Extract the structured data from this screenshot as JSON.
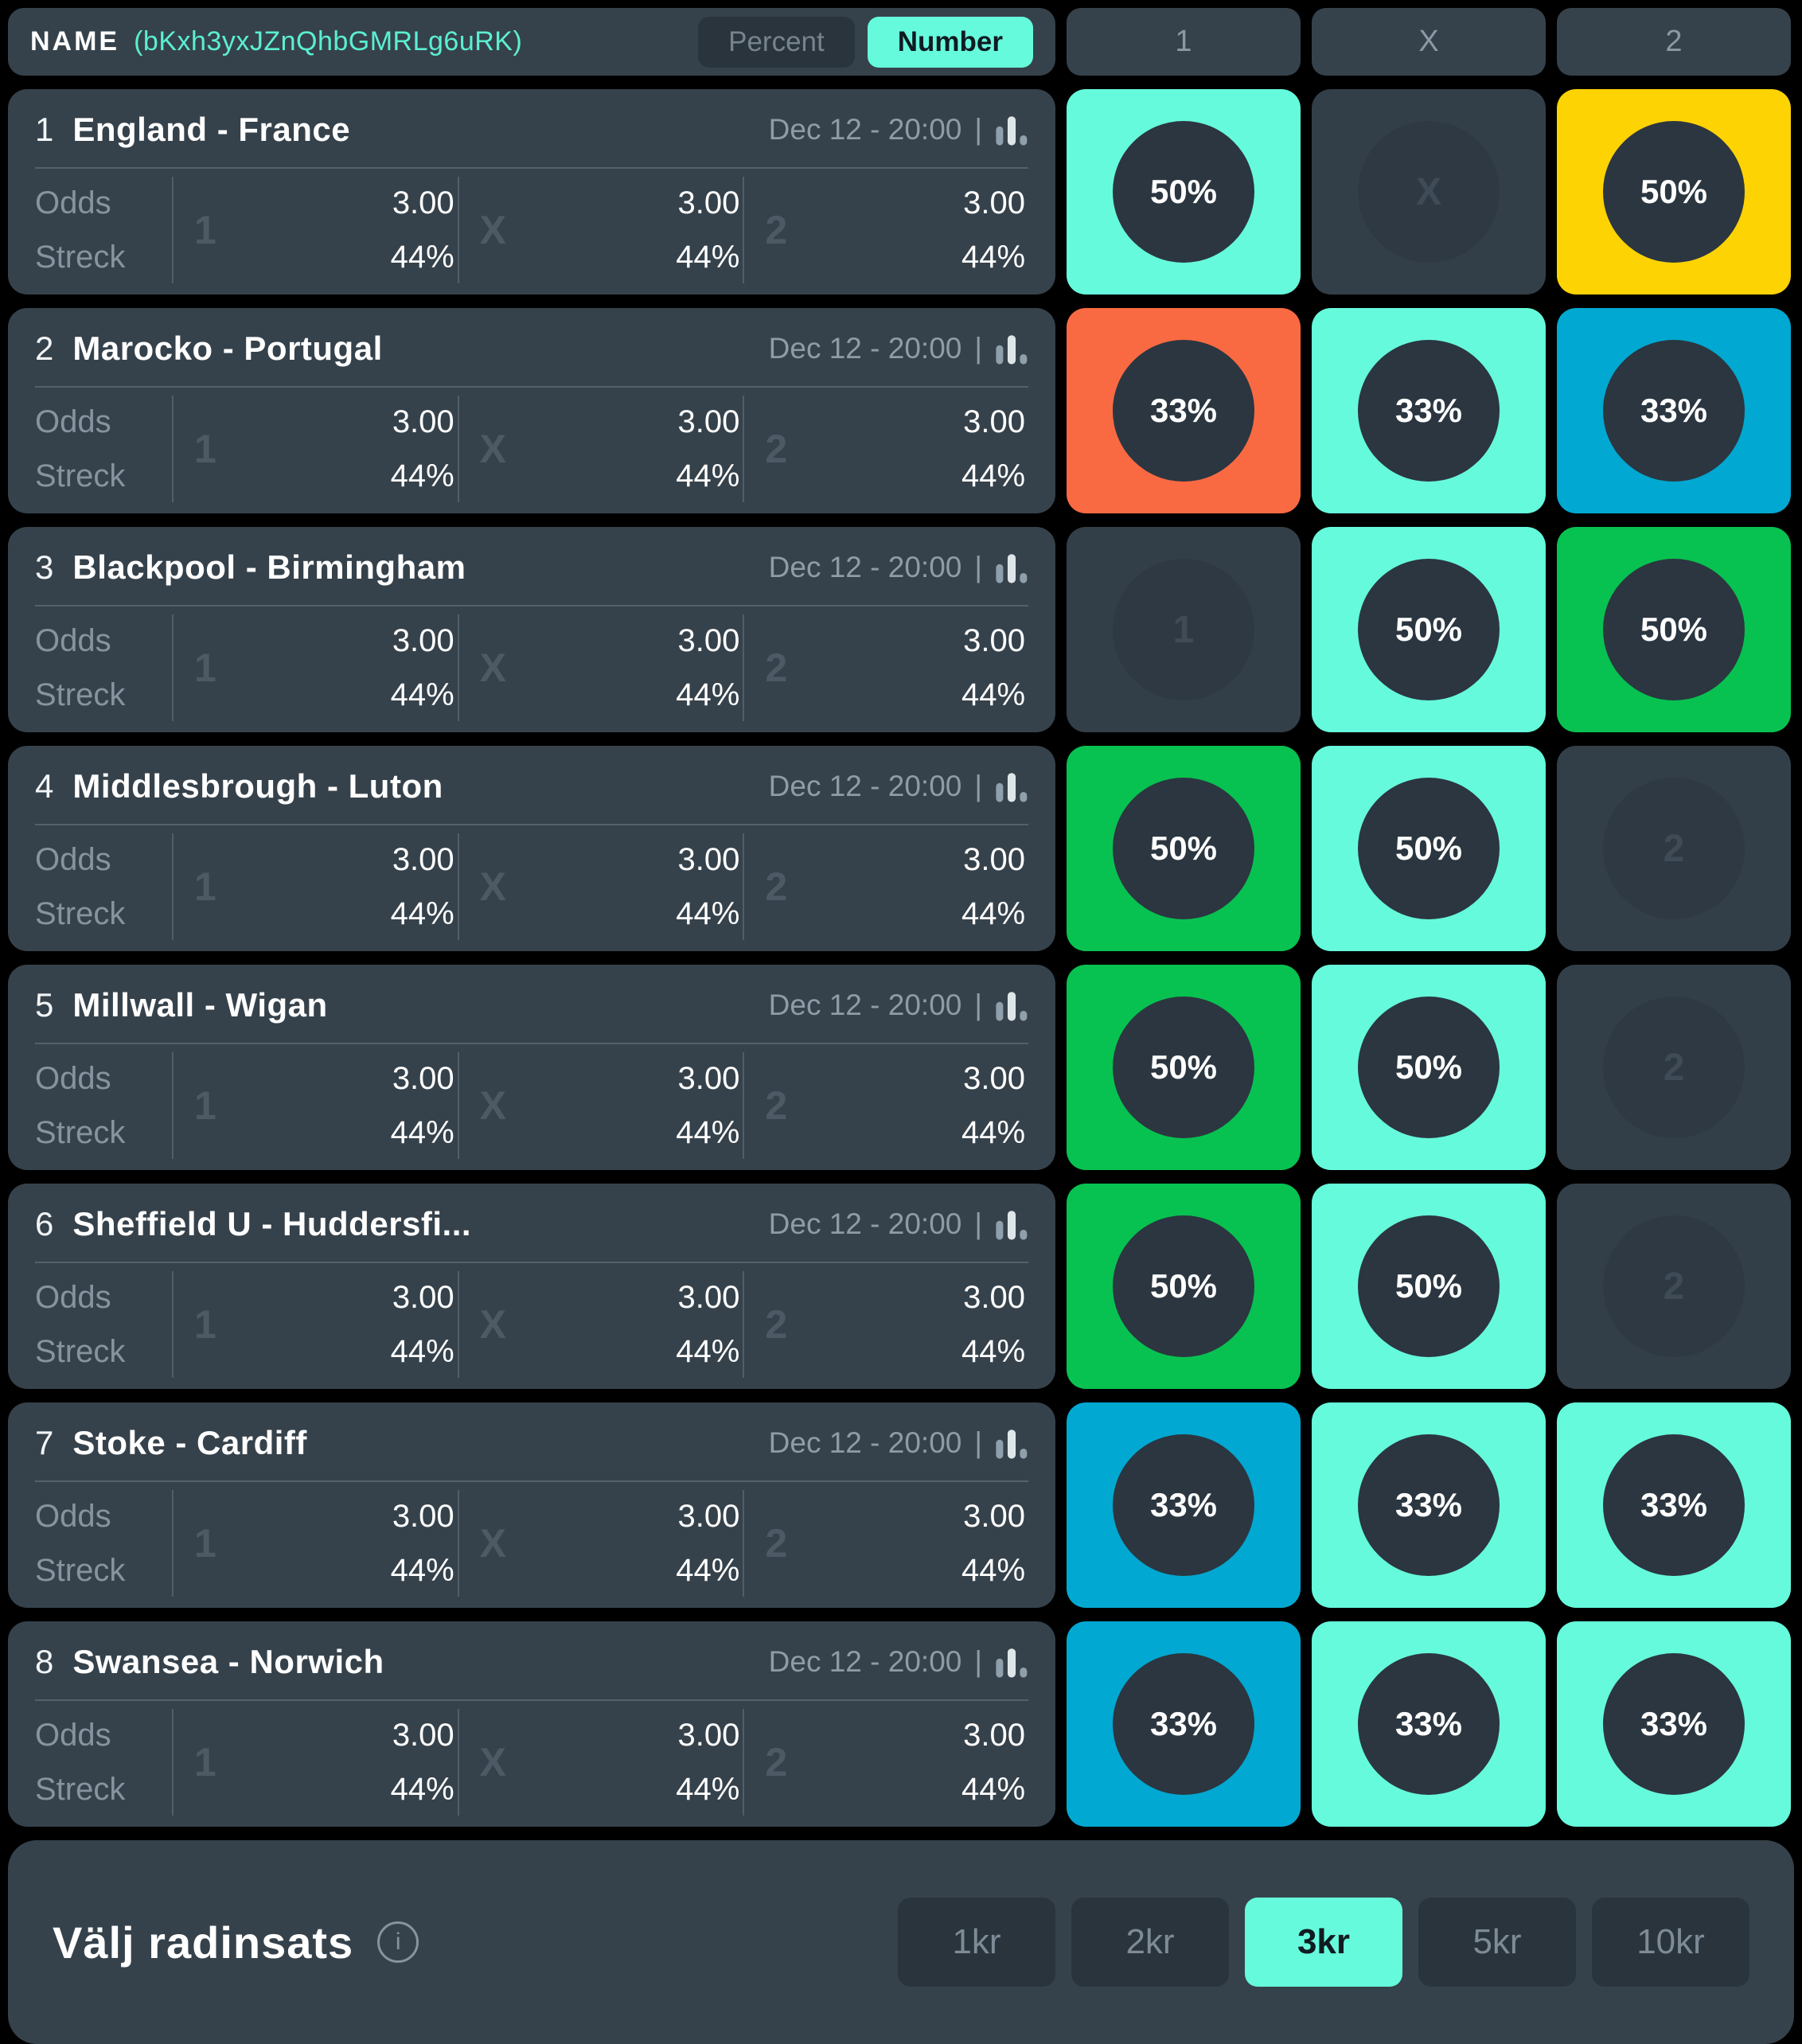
{
  "header": {
    "name_label": "NAME",
    "name_id": "(bKxh3yxJZnQhbGMRLg6uRK)",
    "view_toggle": [
      {
        "label": "Percent",
        "selected": false
      },
      {
        "label": "Number",
        "selected": true
      }
    ],
    "outcome_columns": [
      "1",
      "X",
      "2"
    ]
  },
  "labels": {
    "odds": "Odds",
    "streck": "Streck",
    "separator": "|"
  },
  "matches": [
    {
      "index": "1",
      "name": "England - France",
      "datetime": "Dec 12 - 20:00",
      "outcomes": [
        {
          "sign": "1",
          "odds": "3.00",
          "streck": "44%"
        },
        {
          "sign": "X",
          "odds": "3.00",
          "streck": "44%"
        },
        {
          "sign": "2",
          "odds": "3.00",
          "streck": "44%"
        }
      ],
      "selections": [
        {
          "selected": true,
          "color": "mint",
          "value": "50%"
        },
        {
          "selected": false,
          "sign": "X"
        },
        {
          "selected": true,
          "color": "yellow",
          "value": "50%"
        }
      ]
    },
    {
      "index": "2",
      "name": "Marocko - Portugal",
      "datetime": "Dec 12 - 20:00",
      "outcomes": [
        {
          "sign": "1",
          "odds": "3.00",
          "streck": "44%"
        },
        {
          "sign": "X",
          "odds": "3.00",
          "streck": "44%"
        },
        {
          "sign": "2",
          "odds": "3.00",
          "streck": "44%"
        }
      ],
      "selections": [
        {
          "selected": true,
          "color": "orange",
          "value": "33%"
        },
        {
          "selected": true,
          "color": "mint",
          "value": "33%"
        },
        {
          "selected": true,
          "color": "cyan",
          "value": "33%"
        }
      ]
    },
    {
      "index": "3",
      "name": "Blackpool - Birmingham",
      "datetime": "Dec 12 - 20:00",
      "outcomes": [
        {
          "sign": "1",
          "odds": "3.00",
          "streck": "44%"
        },
        {
          "sign": "X",
          "odds": "3.00",
          "streck": "44%"
        },
        {
          "sign": "2",
          "odds": "3.00",
          "streck": "44%"
        }
      ],
      "selections": [
        {
          "selected": false,
          "sign": "1"
        },
        {
          "selected": true,
          "color": "mint",
          "value": "50%"
        },
        {
          "selected": true,
          "color": "green",
          "value": "50%"
        }
      ]
    },
    {
      "index": "4",
      "name": "Middlesbrough - Luton",
      "datetime": "Dec 12 - 20:00",
      "outcomes": [
        {
          "sign": "1",
          "odds": "3.00",
          "streck": "44%"
        },
        {
          "sign": "X",
          "odds": "3.00",
          "streck": "44%"
        },
        {
          "sign": "2",
          "odds": "3.00",
          "streck": "44%"
        }
      ],
      "selections": [
        {
          "selected": true,
          "color": "green",
          "value": "50%"
        },
        {
          "selected": true,
          "color": "mint",
          "value": "50%"
        },
        {
          "selected": false,
          "sign": "2"
        }
      ]
    },
    {
      "index": "5",
      "name": "Millwall - Wigan",
      "datetime": "Dec 12 - 20:00",
      "outcomes": [
        {
          "sign": "1",
          "odds": "3.00",
          "streck": "44%"
        },
        {
          "sign": "X",
          "odds": "3.00",
          "streck": "44%"
        },
        {
          "sign": "2",
          "odds": "3.00",
          "streck": "44%"
        }
      ],
      "selections": [
        {
          "selected": true,
          "color": "green",
          "value": "50%"
        },
        {
          "selected": true,
          "color": "mint",
          "value": "50%"
        },
        {
          "selected": false,
          "sign": "2"
        }
      ]
    },
    {
      "index": "6",
      "name": "Sheffield U - Huddersfi...",
      "datetime": "Dec 12 - 20:00",
      "outcomes": [
        {
          "sign": "1",
          "odds": "3.00",
          "streck": "44%"
        },
        {
          "sign": "X",
          "odds": "3.00",
          "streck": "44%"
        },
        {
          "sign": "2",
          "odds": "3.00",
          "streck": "44%"
        }
      ],
      "selections": [
        {
          "selected": true,
          "color": "green",
          "value": "50%"
        },
        {
          "selected": true,
          "color": "mint",
          "value": "50%"
        },
        {
          "selected": false,
          "sign": "2"
        }
      ]
    },
    {
      "index": "7",
      "name": "Stoke - Cardiff",
      "datetime": "Dec 12 - 20:00",
      "outcomes": [
        {
          "sign": "1",
          "odds": "3.00",
          "streck": "44%"
        },
        {
          "sign": "X",
          "odds": "3.00",
          "streck": "44%"
        },
        {
          "sign": "2",
          "odds": "3.00",
          "streck": "44%"
        }
      ],
      "selections": [
        {
          "selected": true,
          "color": "cyan",
          "value": "33%"
        },
        {
          "selected": true,
          "color": "mint",
          "value": "33%"
        },
        {
          "selected": true,
          "color": "mint",
          "value": "33%"
        }
      ]
    },
    {
      "index": "8",
      "name": "Swansea - Norwich",
      "datetime": "Dec 12 - 20:00",
      "outcomes": [
        {
          "sign": "1",
          "odds": "3.00",
          "streck": "44%"
        },
        {
          "sign": "X",
          "odds": "3.00",
          "streck": "44%"
        },
        {
          "sign": "2",
          "odds": "3.00",
          "streck": "44%"
        }
      ],
      "selections": [
        {
          "selected": true,
          "color": "cyan",
          "value": "33%"
        },
        {
          "selected": true,
          "color": "mint",
          "value": "33%"
        },
        {
          "selected": true,
          "color": "mint",
          "value": "33%"
        }
      ]
    }
  ],
  "footer": {
    "title": "Välj radinsats",
    "info_icon": "i",
    "stakes": [
      {
        "label": "1kr",
        "selected": false
      },
      {
        "label": "2kr",
        "selected": false
      },
      {
        "label": "3kr",
        "selected": true
      },
      {
        "label": "5kr",
        "selected": false
      },
      {
        "label": "10kr",
        "selected": false
      }
    ]
  },
  "colors": {
    "mint": "#66FADC",
    "green": "#07C250",
    "yellow": "#FDD303",
    "orange": "#FA6A42",
    "cyan": "#01A8D1"
  }
}
